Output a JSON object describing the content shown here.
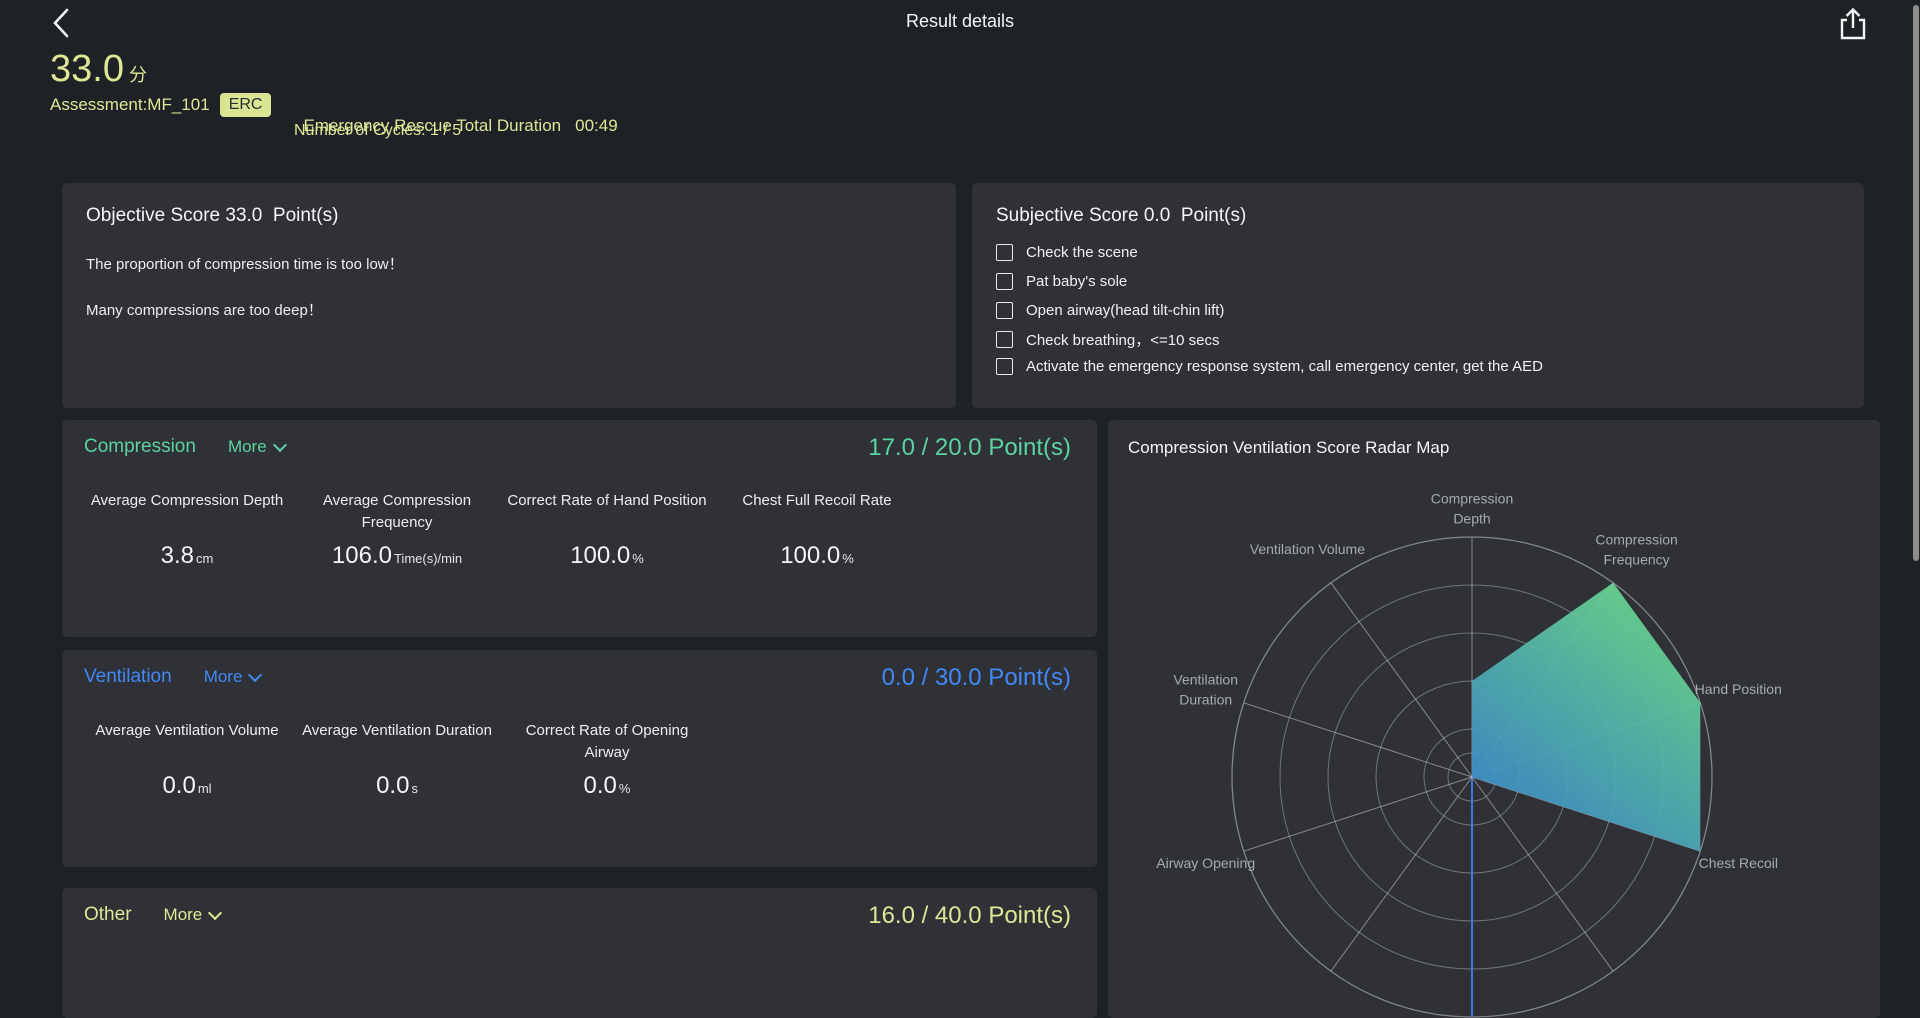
{
  "topbar": {
    "title": "Result details"
  },
  "summary": {
    "score": "33.0",
    "score_unit": "分",
    "assessment_label": "Assessment:MF_101",
    "badge": "ERC",
    "duration_label": "Emergency Rescue Total Duration",
    "duration_value": "00:49",
    "cycles_label": "Number of Cycles: 1 / 5"
  },
  "objective": {
    "title": "Objective Score 33.0  Point(s)",
    "messages": [
      "The proportion of compression time is too low！",
      "Many compressions are too deep！"
    ]
  },
  "subjective": {
    "title": "Subjective Score 0.0  Point(s)",
    "checklist": [
      "Check the scene",
      "Pat baby's sole",
      "Open airway(head tilt-chin lift)",
      "Check breathing，<=10 secs",
      "Activate the emergency response system, call emergency center, get the AED"
    ]
  },
  "sections": {
    "compression": {
      "name": "Compression",
      "more_label": "More",
      "score_display": "17.0 / 20.0 Point(s)",
      "accent": "#5bd3a1",
      "metrics": [
        {
          "label": "Average Compression Depth",
          "value": "3.8",
          "unit": "cm"
        },
        {
          "label": "Average Compression Frequency",
          "value": "106.0",
          "unit": "Time(s)/min"
        },
        {
          "label": "Correct Rate of Hand Position",
          "value": "100.0",
          "unit": "%"
        },
        {
          "label": "Chest Full Recoil Rate",
          "value": "100.0",
          "unit": "%"
        }
      ]
    },
    "ventilation": {
      "name": "Ventilation",
      "more_label": "More",
      "score_display": "0.0 / 30.0 Point(s)",
      "accent": "#4089f7",
      "metrics": [
        {
          "label": "Average Ventilation Volume",
          "value": "0.0",
          "unit": "ml"
        },
        {
          "label": "Average Ventilation Duration",
          "value": "0.0",
          "unit": "s"
        },
        {
          "label": "Correct Rate of Opening Airway",
          "value": "0.0",
          "unit": "%"
        }
      ]
    },
    "other": {
      "name": "Other",
      "more_label": "More",
      "score_display": "16.0 / 40.0 Point(s)",
      "accent": "#dfe797"
    }
  },
  "radar": {
    "title": "Compression Ventilation Score Radar Map"
  },
  "chart_data": {
    "type": "radar",
    "title": "Compression Ventilation Score Radar Map",
    "value_range": [
      0,
      1
    ],
    "rings": [
      0.1,
      0.2,
      0.4,
      0.6,
      0.8,
      1.0
    ],
    "axes": [
      {
        "label": "Compression Depth",
        "angle_deg": 90,
        "value": 0.4
      },
      {
        "label": "Compression Frequency",
        "angle_deg": 54,
        "value": 1.0
      },
      {
        "label": "Hand Position",
        "angle_deg": 18,
        "value": 1.0
      },
      {
        "label": "Chest Recoil",
        "angle_deg": -18,
        "value": 1.0
      },
      {
        "label": "",
        "angle_deg": -54,
        "value": 0
      },
      {
        "label": "",
        "angle_deg": -90,
        "value": 0
      },
      {
        "label": "",
        "angle_deg": -126,
        "value": 0
      },
      {
        "label": "Airway Opening",
        "angle_deg": -162,
        "value": 0
      },
      {
        "label": "Ventilation Duration",
        "angle_deg": 162,
        "value": 0
      },
      {
        "label": "Ventilation Volume",
        "angle_deg": 126,
        "value": 0
      }
    ],
    "fill_gradient": [
      "#6bdb8d",
      "#3b8dcd"
    ],
    "grid_color": "#70757c",
    "spoke_color": "rgba(205,210,214,0.55)",
    "highlight_axis_color": "#3f87f2",
    "legend_position": "none"
  }
}
